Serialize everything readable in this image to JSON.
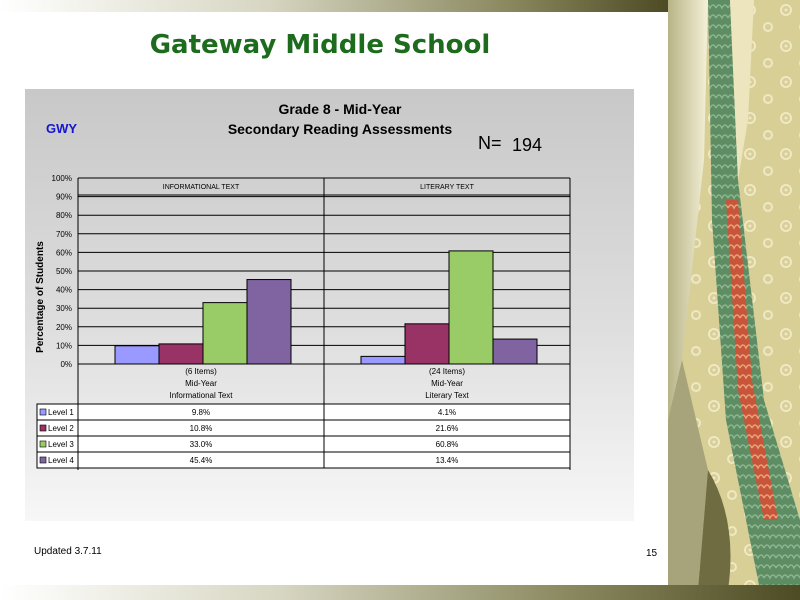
{
  "slide": {
    "title": "Gateway Middle School",
    "footer_left": "Updated  3.7.11",
    "page_number": "15"
  },
  "chart_header": {
    "school_code": "GWY",
    "n_label": "N=",
    "n_value": "194"
  },
  "chart_data": {
    "type": "bar",
    "title_lines": [
      "Grade 8 - Mid-Year",
      "Secondary Reading Assessments"
    ],
    "ylabel": "Percentage of Students",
    "ylim": [
      0,
      100
    ],
    "y_ticks": [
      "0%",
      "10%",
      "20%",
      "30%",
      "40%",
      "50%",
      "60%",
      "70%",
      "80%",
      "90%",
      "100%"
    ],
    "panel_headers": [
      "INFORMATIONAL TEXT",
      "LITERARY TEXT"
    ],
    "categories": [
      [
        "(6 Items)",
        "Mid-Year",
        "Informational Text"
      ],
      [
        "(24 Items)",
        "Mid-Year",
        "Literary Text"
      ]
    ],
    "series": [
      {
        "name": "Level 1",
        "color": "#9999ff",
        "values": [
          9.8,
          4.1
        ],
        "labels": [
          "9.8%",
          "4.1%"
        ]
      },
      {
        "name": "Level 2",
        "color": "#993366",
        "values": [
          10.8,
          21.6
        ],
        "labels": [
          "10.8%",
          "21.6%"
        ]
      },
      {
        "name": "Level 3",
        "color": "#99cc66",
        "values": [
          33.0,
          60.8
        ],
        "labels": [
          "33.0%",
          "60.8%"
        ]
      },
      {
        "name": "Level 4",
        "color": "#8064a2",
        "values": [
          45.4,
          13.4
        ],
        "labels": [
          "45.4%",
          "13.4%"
        ]
      }
    ],
    "grid": true,
    "legend": "data-table-left"
  }
}
